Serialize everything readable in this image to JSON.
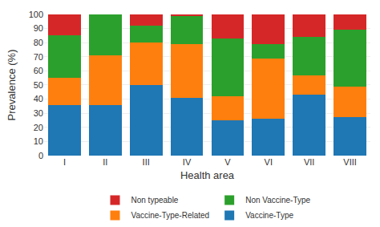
{
  "chart_data": {
    "type": "bar",
    "stacked": true,
    "categories": [
      "I",
      "II",
      "III",
      "IV",
      "V",
      "VI",
      "VII",
      "VIII"
    ],
    "series": [
      {
        "name": "Vaccine-Type",
        "values": [
          36,
          36,
          50,
          41,
          25,
          26,
          43,
          27
        ]
      },
      {
        "name": "Vaccine-Type-Related",
        "values": [
          19,
          35,
          30,
          38,
          17,
          43,
          14,
          22
        ]
      },
      {
        "name": "Non Vaccine-Type",
        "values": [
          30,
          29,
          12,
          20,
          41,
          10,
          27,
          40
        ]
      },
      {
        "name": "Non typeable",
        "values": [
          15,
          0,
          8,
          1,
          17,
          21,
          16,
          11
        ]
      }
    ],
    "xlabel": "Health area",
    "ylabel": "Prevalence (%)",
    "ylim": [
      0,
      100
    ],
    "yticks": [
      0,
      10,
      20,
      30,
      40,
      50,
      60,
      70,
      80,
      90,
      100
    ],
    "grid": true,
    "legend": "bottom"
  }
}
